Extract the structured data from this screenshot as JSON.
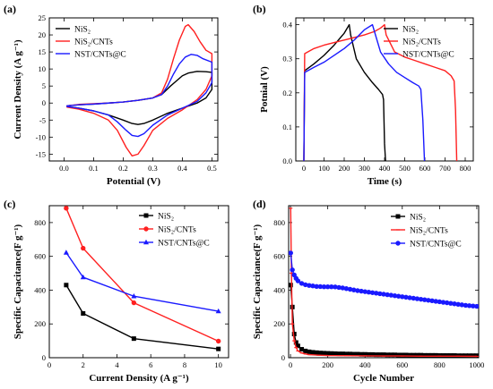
{
  "colors": {
    "NiS2": "#000000",
    "NiS2_CNTs": "#ff2020",
    "NST": "#1a1aff"
  },
  "chart_data": [
    {
      "panel": "(a)",
      "type": "line",
      "xlabel": "Potential (V)",
      "ylabel": "Current Density (A g⁻¹)",
      "xlim": [
        -0.05,
        0.52
      ],
      "ylim": [
        -17,
        25
      ],
      "xticks": [
        0.0,
        0.1,
        0.2,
        0.3,
        0.4,
        0.5
      ],
      "yticks": [
        -15,
        -10,
        -5,
        0,
        5,
        10,
        15,
        20,
        25
      ],
      "legend": {
        "placement": "top-left"
      },
      "series": [
        {
          "name": "NiS₂",
          "color": "#000000",
          "x": [
            0.01,
            0.05,
            0.1,
            0.15,
            0.2,
            0.25,
            0.3,
            0.33,
            0.36,
            0.38,
            0.4,
            0.42,
            0.45,
            0.48,
            0.5,
            0.5,
            0.48,
            0.45,
            0.4,
            0.35,
            0.3,
            0.27,
            0.25,
            0.23,
            0.2,
            0.15,
            0.1,
            0.05,
            0.01
          ],
          "y": [
            -0.8,
            -0.5,
            -0.3,
            0.0,
            0.3,
            0.8,
            1.5,
            2.5,
            5.0,
            6.5,
            8.0,
            8.8,
            9.3,
            9.2,
            9.0,
            4.0,
            1.5,
            0.0,
            -1.5,
            -3.0,
            -5.0,
            -6.0,
            -6.3,
            -6.0,
            -5.0,
            -3.5,
            -2.3,
            -1.5,
            -1.0
          ]
        },
        {
          "name": "NiS₂/CNTs",
          "color": "#ff2020",
          "x": [
            0.01,
            0.05,
            0.1,
            0.15,
            0.2,
            0.25,
            0.3,
            0.33,
            0.35,
            0.37,
            0.39,
            0.41,
            0.42,
            0.44,
            0.46,
            0.48,
            0.5,
            0.5,
            0.48,
            0.45,
            0.4,
            0.35,
            0.3,
            0.27,
            0.25,
            0.23,
            0.21,
            0.18,
            0.15,
            0.1,
            0.05,
            0.01
          ],
          "y": [
            -0.8,
            -0.4,
            -0.2,
            0.0,
            0.3,
            0.8,
            1.5,
            3.0,
            7.0,
            13.0,
            18.5,
            22.5,
            23.0,
            21.0,
            18.0,
            15.5,
            14.5,
            8.0,
            4.0,
            1.0,
            -2.0,
            -4.5,
            -8.0,
            -12.5,
            -15.0,
            -15.5,
            -13.0,
            -8.0,
            -5.0,
            -3.0,
            -1.8,
            -1.2
          ]
        },
        {
          "name": "NST/CNTs@C",
          "color": "#1a1aff",
          "x": [
            0.01,
            0.05,
            0.1,
            0.15,
            0.2,
            0.25,
            0.3,
            0.33,
            0.35,
            0.37,
            0.39,
            0.41,
            0.43,
            0.45,
            0.47,
            0.5,
            0.5,
            0.48,
            0.45,
            0.4,
            0.35,
            0.3,
            0.27,
            0.25,
            0.23,
            0.21,
            0.18,
            0.15,
            0.1,
            0.05,
            0.01
          ],
          "y": [
            -0.8,
            -0.5,
            -0.3,
            0.0,
            0.3,
            0.8,
            1.5,
            2.5,
            5.0,
            8.5,
            11.5,
            13.5,
            14.3,
            14.0,
            13.0,
            12.0,
            6.0,
            3.0,
            0.5,
            -1.5,
            -3.5,
            -6.5,
            -9.0,
            -9.8,
            -9.5,
            -8.0,
            -5.5,
            -3.5,
            -2.3,
            -1.5,
            -1.0
          ]
        }
      ]
    },
    {
      "panel": "(b)",
      "type": "line",
      "xlabel": "Time (s)",
      "ylabel": "Potnial (V)",
      "xlim": [
        -40,
        840
      ],
      "ylim": [
        0.0,
        0.42
      ],
      "xticks": [
        0,
        100,
        200,
        300,
        400,
        500,
        600,
        700,
        800
      ],
      "yticks": [
        0.0,
        0.1,
        0.2,
        0.3,
        0.4
      ],
      "legend": {
        "placement": "top-right"
      },
      "series": [
        {
          "name": "NiS₂",
          "color": "#000000",
          "x": [
            0,
            4,
            50,
            100,
            150,
            200,
            225,
            232,
            260,
            300,
            340,
            370,
            390,
            395,
            400,
            405
          ],
          "y": [
            0.0,
            0.265,
            0.285,
            0.31,
            0.34,
            0.375,
            0.4,
            0.37,
            0.3,
            0.26,
            0.23,
            0.21,
            0.195,
            0.18,
            0.05,
            0.0
          ],
          "fill": "none"
        },
        {
          "name": "NiS₂/CNTs",
          "color": "#ff2020",
          "x": [
            0,
            4,
            50,
            100,
            200,
            300,
            350,
            380,
            400,
            408,
            450,
            500,
            550,
            600,
            650,
            700,
            730,
            745,
            752,
            758
          ],
          "y": [
            0.0,
            0.315,
            0.33,
            0.34,
            0.355,
            0.37,
            0.38,
            0.39,
            0.4,
            0.37,
            0.32,
            0.305,
            0.295,
            0.285,
            0.275,
            0.265,
            0.25,
            0.235,
            0.15,
            0.0
          ]
        },
        {
          "name": "NST/CNTs@C",
          "color": "#1a1aff",
          "x": [
            0,
            4,
            50,
            100,
            150,
            200,
            250,
            300,
            340,
            350,
            380,
            420,
            460,
            500,
            540,
            570,
            580,
            590,
            598
          ],
          "y": [
            0.0,
            0.26,
            0.275,
            0.29,
            0.31,
            0.33,
            0.355,
            0.385,
            0.4,
            0.38,
            0.32,
            0.285,
            0.26,
            0.245,
            0.23,
            0.22,
            0.21,
            0.12,
            0.0
          ]
        }
      ]
    },
    {
      "panel": "(c)",
      "type": "line",
      "xlabel": "Current Density (A g⁻¹)",
      "ylabel": "Specific Capacitance(F g⁻¹)",
      "xlim": [
        0,
        10.6
      ],
      "ylim": [
        0,
        900
      ],
      "xticks": [
        0,
        2,
        4,
        6,
        8,
        10
      ],
      "yticks": [
        0,
        200,
        400,
        600,
        800
      ],
      "legend": {
        "placement": "top-right"
      },
      "series": [
        {
          "name": "NiS₂",
          "color": "#000000",
          "marker": "square",
          "x": [
            1,
            2,
            5,
            10
          ],
          "y": [
            430,
            262,
            113,
            52
          ]
        },
        {
          "name": "NiS₂/CNTs",
          "color": "#ff2020",
          "marker": "circle",
          "x": [
            1,
            2,
            5,
            10
          ],
          "y": [
            885,
            648,
            325,
            98
          ]
        },
        {
          "name": "NST/CNTs@C",
          "color": "#1a1aff",
          "marker": "triangle",
          "x": [
            1,
            2,
            5,
            10
          ],
          "y": [
            622,
            476,
            364,
            275
          ]
        }
      ]
    },
    {
      "panel": "(d)",
      "type": "line",
      "xlabel": "Cycle Number",
      "ylabel": "Specific Capacitance(F g⁻¹)",
      "xlim": [
        -10,
        1010
      ],
      "ylim": [
        0,
        900
      ],
      "xticks": [
        0,
        200,
        400,
        600,
        800,
        1000
      ],
      "yticks": [
        0,
        200,
        400,
        600,
        800
      ],
      "legend": {
        "placement": "top-right"
      },
      "series": [
        {
          "name": "NiS₂",
          "color": "#000000",
          "marker": "square",
          "x": [
            1,
            10,
            20,
            30,
            40,
            60,
            80,
            100,
            120,
            140,
            160,
            180,
            200,
            220,
            240,
            260,
            280,
            300,
            320,
            340,
            360,
            380,
            400,
            420,
            440,
            460,
            480,
            500,
            520,
            540,
            560,
            580,
            600,
            620,
            640,
            660,
            680,
            700,
            720,
            740,
            760,
            780,
            800,
            820,
            840,
            860,
            880,
            900,
            920,
            940,
            960,
            980,
            1000
          ],
          "y": [
            430,
            300,
            140,
            90,
            70,
            50,
            40,
            35,
            32,
            30,
            28,
            27,
            26,
            25,
            24,
            23,
            23,
            22,
            22,
            21,
            21,
            20,
            20,
            19,
            19,
            18,
            18,
            18,
            17,
            17,
            17,
            16,
            16,
            16,
            15,
            15,
            15,
            15,
            14,
            14,
            14,
            14,
            13,
            13,
            13,
            13,
            13,
            12,
            12,
            12,
            12,
            12,
            12
          ]
        },
        {
          "name": "NiS₂/CNTs",
          "color": "#ff2020",
          "marker": "dash",
          "x": [
            1,
            5,
            10,
            20,
            30,
            40,
            60,
            80,
            100,
            150,
            200,
            300,
            400,
            500,
            600,
            700,
            800,
            900,
            1000
          ],
          "y": [
            885,
            500,
            200,
            100,
            60,
            40,
            28,
            22,
            18,
            15,
            13,
            12,
            11,
            10,
            10,
            9,
            9,
            9,
            8
          ]
        },
        {
          "name": "NST/CNTs@C",
          "color": "#1a1aff",
          "marker": "circle",
          "x": [
            1,
            10,
            20,
            30,
            40,
            60,
            80,
            100,
            120,
            140,
            160,
            180,
            200,
            220,
            240,
            260,
            280,
            300,
            320,
            340,
            360,
            380,
            400,
            420,
            440,
            460,
            480,
            500,
            520,
            540,
            560,
            580,
            600,
            620,
            640,
            660,
            680,
            700,
            720,
            740,
            760,
            780,
            800,
            820,
            840,
            860,
            880,
            900,
            920,
            940,
            960,
            980,
            1000
          ],
          "y": [
            620,
            520,
            490,
            470,
            455,
            440,
            432,
            428,
            425,
            422,
            421,
            420,
            420,
            420,
            419,
            416,
            413,
            409,
            405,
            401,
            397,
            394,
            391,
            388,
            385,
            382,
            379,
            376,
            373,
            370,
            367,
            364,
            361,
            358,
            355,
            352,
            349,
            346,
            343,
            340,
            337,
            334,
            331,
            328,
            325,
            322,
            319,
            316,
            313,
            310,
            308,
            306,
            304
          ]
        }
      ]
    }
  ]
}
